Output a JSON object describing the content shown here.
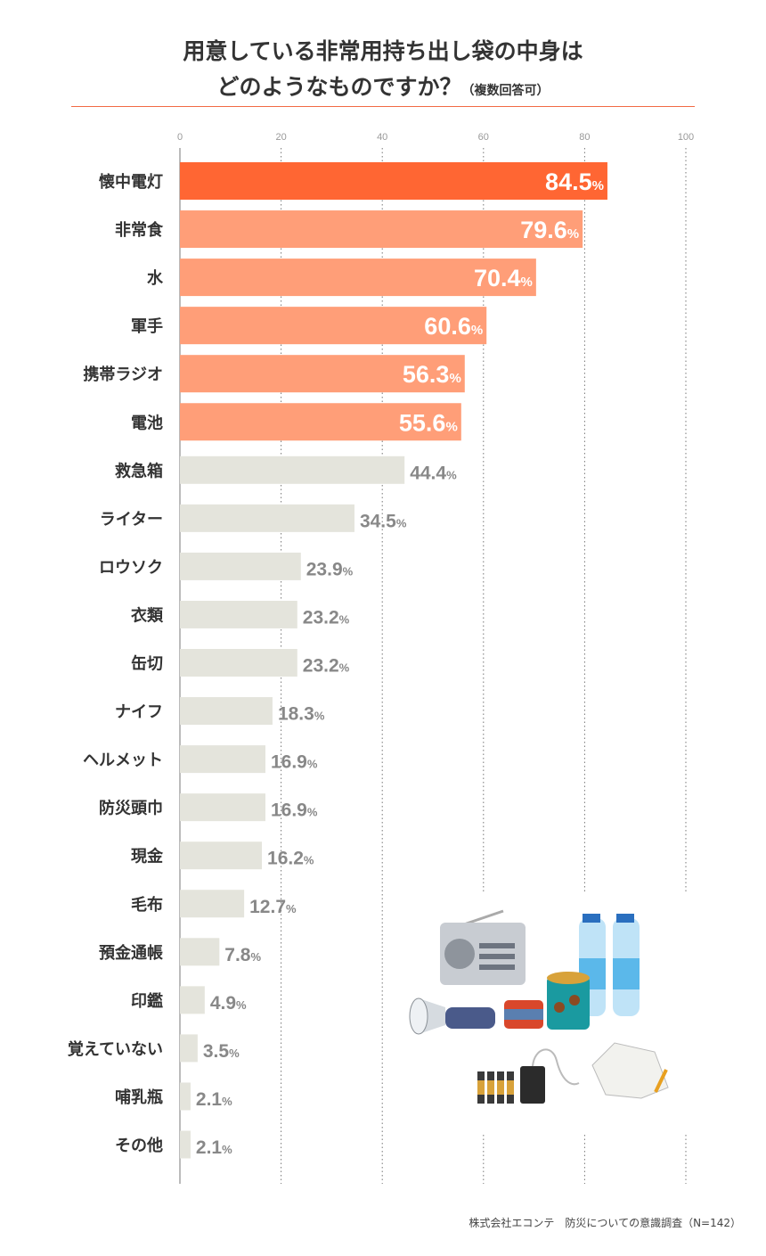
{
  "chart_data": {
    "type": "bar",
    "orientation": "horizontal",
    "title_line1": "用意している非常用持ち出し袋の中身は",
    "title_line2": "どのようなものですか？",
    "title_note": "（複数回答可）",
    "xlim": [
      0,
      100
    ],
    "xticks": [
      0,
      20,
      40,
      60,
      80,
      100
    ],
    "grid": true,
    "unit": "%",
    "categories": [
      "懐中電灯",
      "非常食",
      "水",
      "軍手",
      "携帯ラジオ",
      "電池",
      "救急箱",
      "ライター",
      "ロウソク",
      "衣類",
      "缶切",
      "ナイフ",
      "ヘルメット",
      "防災頭巾",
      "現金",
      "毛布",
      "預金通帳",
      "印鑑",
      "覚えていない",
      "哺乳瓶",
      "その他"
    ],
    "values": [
      84.5,
      79.6,
      70.4,
      60.6,
      56.3,
      55.6,
      44.4,
      34.5,
      23.9,
      23.2,
      23.2,
      18.3,
      16.9,
      16.9,
      16.2,
      12.7,
      7.8,
      4.9,
      3.5,
      2.1,
      2.1
    ],
    "value_labels": [
      "84.5",
      "79.6",
      "70.4",
      "60.6",
      "56.3",
      "55.6",
      "44.4",
      "34.5",
      "23.9",
      "23.2",
      "23.2",
      "18.3",
      "16.9",
      "16.9",
      "16.2",
      "12.7",
      "7.8",
      "4.9",
      "3.5",
      "2.1",
      "2.1"
    ],
    "colors": {
      "top": "#ff6633",
      "highlight": "#ff9e78",
      "other": "#e4e4dc",
      "label_other": "#888888",
      "label_inside": "#ffffff"
    }
  },
  "footer": "株式会社エコンテ　防災についての意識調査（N=142）"
}
